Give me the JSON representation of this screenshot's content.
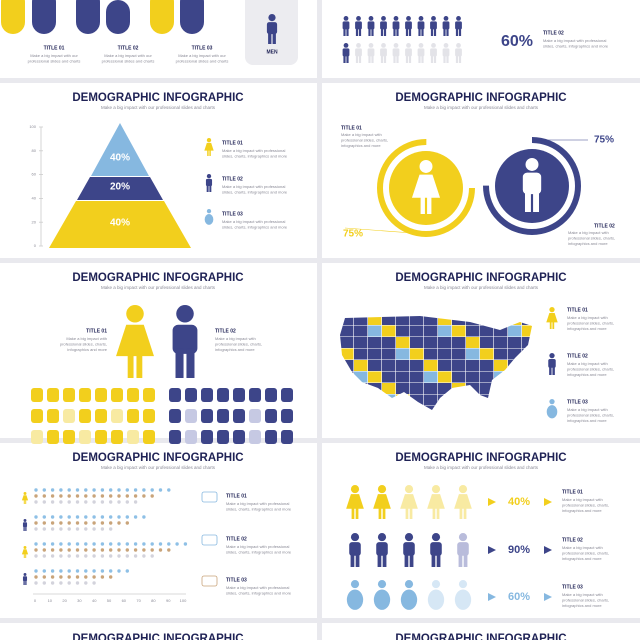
{
  "top_left": {
    "titles": [
      "TITLE 01",
      "TITLE 02",
      "TITLE 03"
    ],
    "body": [
      "Make a big impact with our",
      "professional slides and charts"
    ],
    "badge": "MEN"
  },
  "top_right": {
    "percent": "60%",
    "title": "TITLE 02",
    "body": [
      "Make a big impact with professional",
      "slides, charts, infographics and more"
    ]
  },
  "pyramid_slide": {
    "heading": "DEMOGRAPHIC INFOGRAPHIC",
    "subtitle": "Make a big impact with our professional slides and charts",
    "axis": [
      "100",
      "80",
      "60",
      "40",
      "20",
      "0"
    ],
    "levels": [
      "40%",
      "20%",
      "40%"
    ],
    "items": [
      {
        "title": "TITLE 01",
        "body": [
          "Make a big impact with professional",
          "slides, charts, infographics and more"
        ]
      },
      {
        "title": "TITLE 02",
        "body": [
          "Make a big impact with professional",
          "slides, charts, infographics and more"
        ]
      },
      {
        "title": "TITLE 03",
        "body": [
          "Make a big impact with professional",
          "slides, charts, infographics and more"
        ]
      }
    ]
  },
  "circle_slide": {
    "heading": "DEMOGRAPHIC INFOGRAPHIC",
    "subtitle": "Make a big impact with our professional slides and charts",
    "left": {
      "title": "TITLE 01",
      "body": [
        "Make a big impact with",
        "professional slides, charts,",
        "infographics and more"
      ],
      "percent": "75%"
    },
    "right": {
      "title": "TITLE 02",
      "body": [
        "Make a big impact with",
        "professional slides, charts,",
        "infographics and more"
      ],
      "percent": "75%"
    }
  },
  "people_slide": {
    "heading": "DEMOGRAPHIC INFOGRAPHIC",
    "subtitle": "Make a big impact with our professional slides and charts",
    "left": {
      "title": "TITLE 01",
      "body": [
        "Make a big impact with",
        "professional slides, charts,",
        "infographics and more"
      ]
    },
    "right": {
      "title": "TITLE 02",
      "body": [
        "Make a big impact with",
        "professional slides, charts,",
        "infographics and more"
      ]
    }
  },
  "map_slide": {
    "heading": "DEMOGRAPHIC INFOGRAPHIC",
    "subtitle": "Make a big impact with our professional slides and charts",
    "items": [
      {
        "title": "TITLE 01",
        "body": [
          "Make a big impact with",
          "professional slides, charts,",
          "infographics and more"
        ]
      },
      {
        "title": "TITLE 02",
        "body": [
          "Make a big impact with",
          "professional slides, charts,",
          "infographics and more"
        ]
      },
      {
        "title": "TITLE 03",
        "body": [
          "Make a big impact with",
          "professional slides, charts,",
          "infographics and more"
        ]
      }
    ]
  },
  "dots_slide": {
    "heading": "DEMOGRAPHIC INFOGRAPHIC",
    "subtitle": "Make a big impact with our professional slides and charts",
    "axis": [
      "0",
      "10",
      "20",
      "30",
      "40",
      "50",
      "60",
      "70",
      "80",
      "90",
      "100"
    ],
    "items": [
      {
        "title": "TITLE 01",
        "body": [
          "Make a big impact with professional",
          "slides, charts, infographics and more"
        ]
      },
      {
        "title": "TITLE 02",
        "body": [
          "Make a big impact with professional",
          "slides, charts, infographics and more"
        ]
      },
      {
        "title": "TITLE 03",
        "body": [
          "Make a big impact with professional",
          "slides, charts, infographics and more"
        ]
      }
    ]
  },
  "percent_slide": {
    "heading": "DEMOGRAPHIC INFOGRAPHIC",
    "subtitle": "Make a big impact with our professional slides and charts",
    "rows": [
      {
        "percent": "40%",
        "title": "TITLE 01",
        "body": [
          "Make a big impact with",
          "professional slides, charts,",
          "infographics and more"
        ]
      },
      {
        "percent": "90%",
        "title": "TITLE 02",
        "body": [
          "Make a big impact with",
          "professional slides, charts,",
          "infographics and more"
        ]
      },
      {
        "percent": "60%",
        "title": "TITLE 03",
        "body": [
          "Make a big impact with",
          "professional slides, charts,",
          "infographics and more"
        ]
      }
    ]
  },
  "bottom_left": {
    "heading": "DEMOGRAPHIC INFOGRAPHIC"
  },
  "bottom_right": {
    "heading": "DEMOGRAPHIC INFOGRAPHIC"
  }
}
